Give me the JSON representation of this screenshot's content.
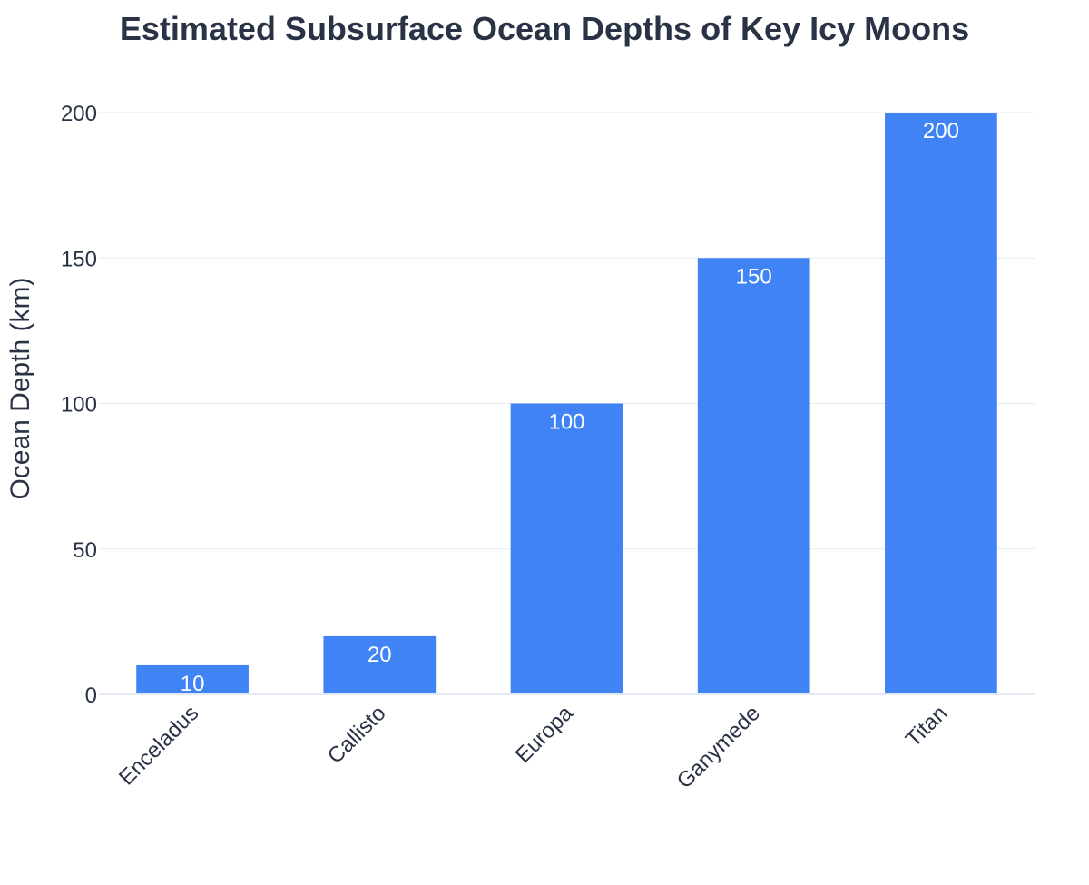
{
  "chart_data": {
    "type": "bar",
    "title": "Estimated Subsurface Ocean Depths of Key Icy Moons",
    "xlabel": "",
    "ylabel": "Ocean Depth (km)",
    "categories": [
      "Enceladus",
      "Callisto",
      "Europa",
      "Ganymede",
      "Titan"
    ],
    "values": [
      10,
      20,
      100,
      150,
      200
    ],
    "data_labels": [
      "10",
      "20",
      "100",
      "150",
      "200"
    ],
    "ylim": [
      0,
      200
    ],
    "yticks": [
      0,
      50,
      100,
      150,
      200
    ],
    "ytick_labels": [
      "0",
      "50",
      "100",
      "150",
      "200"
    ],
    "grid": true,
    "legend": "none",
    "colors": {
      "bar": "#3f83f4",
      "text": "#2a3346",
      "label_inside": "#ffffff",
      "grid": "#e6ebf2"
    }
  }
}
